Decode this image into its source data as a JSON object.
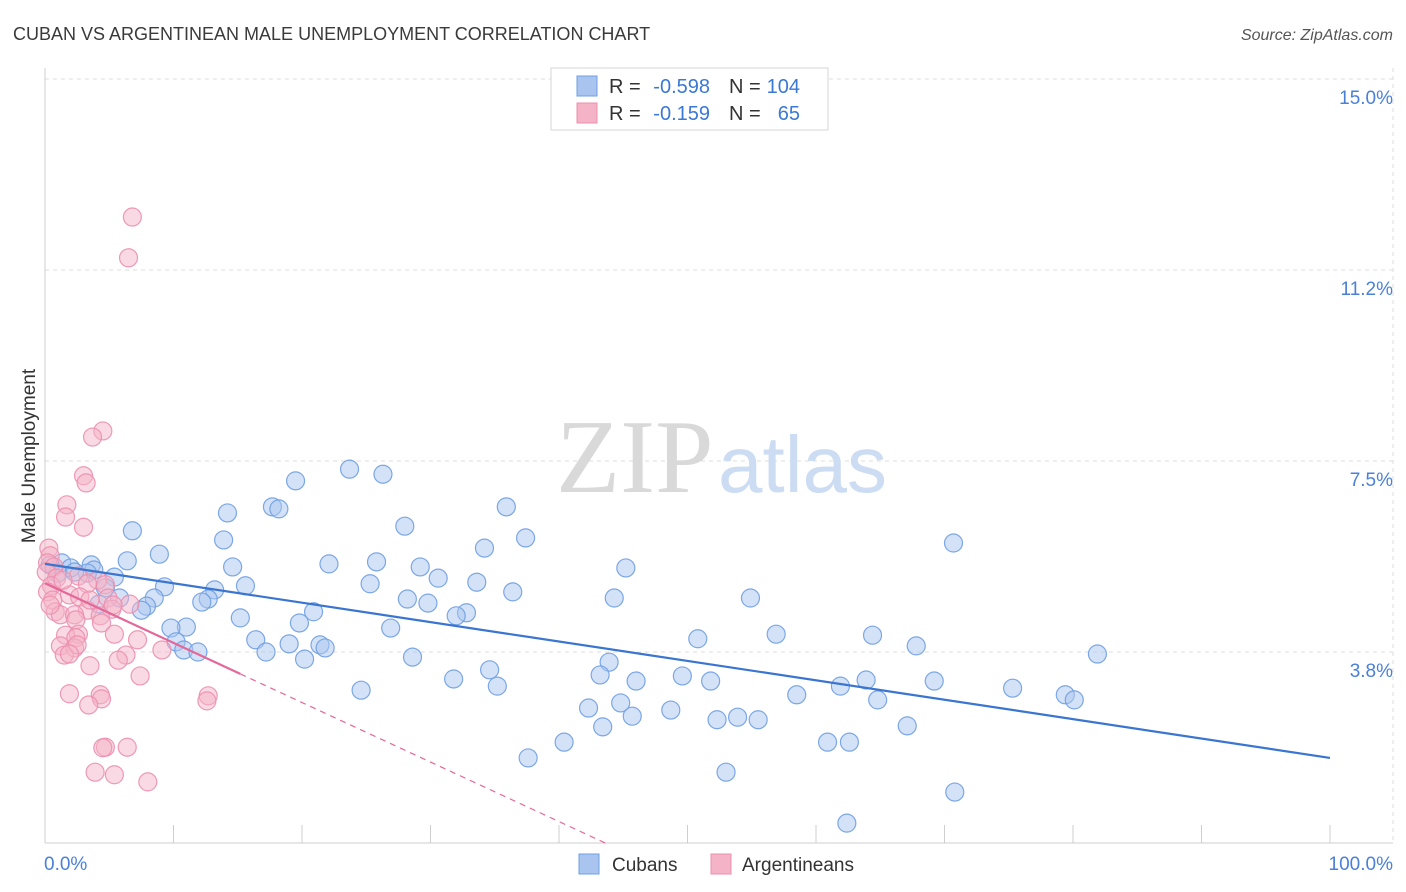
{
  "source": "Source: ZipAtlas.com",
  "watermark": {
    "zip": "ZIP",
    "atlas": "atlas"
  },
  "stats_labels": {
    "r": "R =",
    "n": "N ="
  },
  "chart_data": {
    "type": "scatter",
    "title": "CUBAN VS ARGENTINEAN MALE UNEMPLOYMENT CORRELATION CHART",
    "ylabel": "Male Unemployment",
    "xlim": [
      0,
      100
    ],
    "ylim": [
      0,
      15
    ],
    "grid": true,
    "y_ticks": [
      {
        "value": 15,
        "label": "15.0%"
      },
      {
        "value": 11.25,
        "label": "11.2%"
      },
      {
        "value": 7.5,
        "label": "7.5%"
      },
      {
        "value": 3.75,
        "label": "3.8%"
      }
    ],
    "x_ticks": [
      {
        "value": 0,
        "label": "0.0%"
      },
      {
        "value": 100,
        "label": "100.0%"
      }
    ],
    "x_minor_ticks": [
      0,
      10,
      20,
      30,
      40,
      50,
      60,
      70,
      80,
      90,
      100
    ],
    "series": [
      {
        "name": "Cubans",
        "r_text": "-0.598",
        "n_text": "104",
        "colors": {
          "fill": "#a9c5ef",
          "stroke": "#6f9fe3",
          "line": "#3a75d0"
        },
        "trend": {
          "solid": [
            [
              0,
              5.48
            ],
            [
              100,
              1.67
            ]
          ]
        },
        "points": [
          [
            19.5,
            7.11
          ],
          [
            23.7,
            7.34
          ],
          [
            26.3,
            7.24
          ],
          [
            17.7,
            6.6
          ],
          [
            18.2,
            6.56
          ],
          [
            14.2,
            6.48
          ],
          [
            35.9,
            6.6
          ],
          [
            28.0,
            6.22
          ],
          [
            6.8,
            6.13
          ],
          [
            13.9,
            5.95
          ],
          [
            37.4,
            5.99
          ],
          [
            70.7,
            5.89
          ],
          [
            34.2,
            5.79
          ],
          [
            8.9,
            5.67
          ],
          [
            6.4,
            5.54
          ],
          [
            25.8,
            5.52
          ],
          [
            22.1,
            5.48
          ],
          [
            14.6,
            5.42
          ],
          [
            29.2,
            5.42
          ],
          [
            45.2,
            5.4
          ],
          [
            1.3,
            5.5
          ],
          [
            0.4,
            5.46
          ],
          [
            2.0,
            5.4
          ],
          [
            3.6,
            5.46
          ],
          [
            3.8,
            5.36
          ],
          [
            3.3,
            5.3
          ],
          [
            5.4,
            5.22
          ],
          [
            1.0,
            5.3
          ],
          [
            2.3,
            5.32
          ],
          [
            30.6,
            5.2
          ],
          [
            25.3,
            5.09
          ],
          [
            33.6,
            5.12
          ],
          [
            15.6,
            5.05
          ],
          [
            9.3,
            5.03
          ],
          [
            13.2,
            4.97
          ],
          [
            4.7,
            5.01
          ],
          [
            36.4,
            4.93
          ],
          [
            8.5,
            4.81
          ],
          [
            5.8,
            4.81
          ],
          [
            12.7,
            4.79
          ],
          [
            12.2,
            4.73
          ],
          [
            28.2,
            4.79
          ],
          [
            44.3,
            4.81
          ],
          [
            54.9,
            4.81
          ],
          [
            29.8,
            4.71
          ],
          [
            4.2,
            4.69
          ],
          [
            7.9,
            4.65
          ],
          [
            7.5,
            4.57
          ],
          [
            20.9,
            4.54
          ],
          [
            32.8,
            4.52
          ],
          [
            32.0,
            4.46
          ],
          [
            15.2,
            4.42
          ],
          [
            19.8,
            4.32
          ],
          [
            11.0,
            4.24
          ],
          [
            9.8,
            4.22
          ],
          [
            26.9,
            4.22
          ],
          [
            56.9,
            4.1
          ],
          [
            64.4,
            4.08
          ],
          [
            50.8,
            4.01
          ],
          [
            16.4,
            3.99
          ],
          [
            10.2,
            3.95
          ],
          [
            19.0,
            3.91
          ],
          [
            21.4,
            3.89
          ],
          [
            21.8,
            3.83
          ],
          [
            67.8,
            3.87
          ],
          [
            10.8,
            3.79
          ],
          [
            11.9,
            3.75
          ],
          [
            17.2,
            3.75
          ],
          [
            81.9,
            3.71
          ],
          [
            28.6,
            3.65
          ],
          [
            20.2,
            3.61
          ],
          [
            43.9,
            3.55
          ],
          [
            34.6,
            3.4
          ],
          [
            43.2,
            3.3
          ],
          [
            49.6,
            3.28
          ],
          [
            31.8,
            3.22
          ],
          [
            46.0,
            3.18
          ],
          [
            51.8,
            3.18
          ],
          [
            63.9,
            3.2
          ],
          [
            69.2,
            3.18
          ],
          [
            35.2,
            3.08
          ],
          [
            61.9,
            3.08
          ],
          [
            24.6,
            3.0
          ],
          [
            75.3,
            3.04
          ],
          [
            58.5,
            2.91
          ],
          [
            79.4,
            2.91
          ],
          [
            80.1,
            2.81
          ],
          [
            64.8,
            2.81
          ],
          [
            44.8,
            2.75
          ],
          [
            42.3,
            2.65
          ],
          [
            48.7,
            2.61
          ],
          [
            45.7,
            2.49
          ],
          [
            53.9,
            2.47
          ],
          [
            52.3,
            2.42
          ],
          [
            55.5,
            2.42
          ],
          [
            43.4,
            2.28
          ],
          [
            67.1,
            2.3
          ],
          [
            40.4,
            1.98
          ],
          [
            60.9,
            1.98
          ],
          [
            62.6,
            1.98
          ],
          [
            37.6,
            1.67
          ],
          [
            53.0,
            1.39
          ],
          [
            70.8,
            1.0
          ],
          [
            62.4,
            0.39
          ]
        ]
      },
      {
        "name": "Argentineans",
        "r_text": "-0.159",
        "n_text": "65",
        "colors": {
          "fill": "#f4b3c7",
          "stroke": "#ec8fae",
          "line": "#e4689a"
        },
        "trend": {
          "solid": [
            [
              0,
              5.1
            ],
            [
              15.2,
              3.32
            ]
          ],
          "dashed": [
            [
              15.2,
              3.32
            ],
            [
              43.6,
              0
            ]
          ]
        },
        "points": [
          [
            6.8,
            12.29
          ],
          [
            6.5,
            11.49
          ],
          [
            4.5,
            8.09
          ],
          [
            3.7,
            7.97
          ],
          [
            3.0,
            7.21
          ],
          [
            3.2,
            7.07
          ],
          [
            1.7,
            6.64
          ],
          [
            1.6,
            6.4
          ],
          [
            3.0,
            6.2
          ],
          [
            0.3,
            5.79
          ],
          [
            0.4,
            5.64
          ],
          [
            0.2,
            5.5
          ],
          [
            0.7,
            5.42
          ],
          [
            0.1,
            5.32
          ],
          [
            0.9,
            5.2
          ],
          [
            2.6,
            5.24
          ],
          [
            4.1,
            5.16
          ],
          [
            3.3,
            5.09
          ],
          [
            4.7,
            5.07
          ],
          [
            0.5,
            5.05
          ],
          [
            0.2,
            4.93
          ],
          [
            1.9,
            4.87
          ],
          [
            0.6,
            4.77
          ],
          [
            2.7,
            4.83
          ],
          [
            4.9,
            4.81
          ],
          [
            6.6,
            4.69
          ],
          [
            5.2,
            4.59
          ],
          [
            0.8,
            4.54
          ],
          [
            1.2,
            4.48
          ],
          [
            3.3,
            4.57
          ],
          [
            2.3,
            4.48
          ],
          [
            2.4,
            4.38
          ],
          [
            4.3,
            4.46
          ],
          [
            4.4,
            4.32
          ],
          [
            2.6,
            4.1
          ],
          [
            1.6,
            4.08
          ],
          [
            2.4,
            4.03
          ],
          [
            5.4,
            4.1
          ],
          [
            7.2,
            3.99
          ],
          [
            1.2,
            3.87
          ],
          [
            2.3,
            3.83
          ],
          [
            2.5,
            3.89
          ],
          [
            9.1,
            3.79
          ],
          [
            1.5,
            3.69
          ],
          [
            6.3,
            3.69
          ],
          [
            5.7,
            3.59
          ],
          [
            3.5,
            3.48
          ],
          [
            7.4,
            3.28
          ],
          [
            1.9,
            2.93
          ],
          [
            4.3,
            2.91
          ],
          [
            12.7,
            2.89
          ],
          [
            12.6,
            2.79
          ],
          [
            4.4,
            2.83
          ],
          [
            3.4,
            2.71
          ],
          [
            4.7,
            1.88
          ],
          [
            4.5,
            1.87
          ],
          [
            6.4,
            1.88
          ],
          [
            3.9,
            1.39
          ],
          [
            5.4,
            1.34
          ],
          [
            8.0,
            1.2
          ],
          [
            3.5,
            4.77
          ],
          [
            1.4,
            5.16
          ],
          [
            1.9,
            3.71
          ],
          [
            5.3,
            4.67
          ],
          [
            0.4,
            4.67
          ]
        ]
      }
    ]
  }
}
